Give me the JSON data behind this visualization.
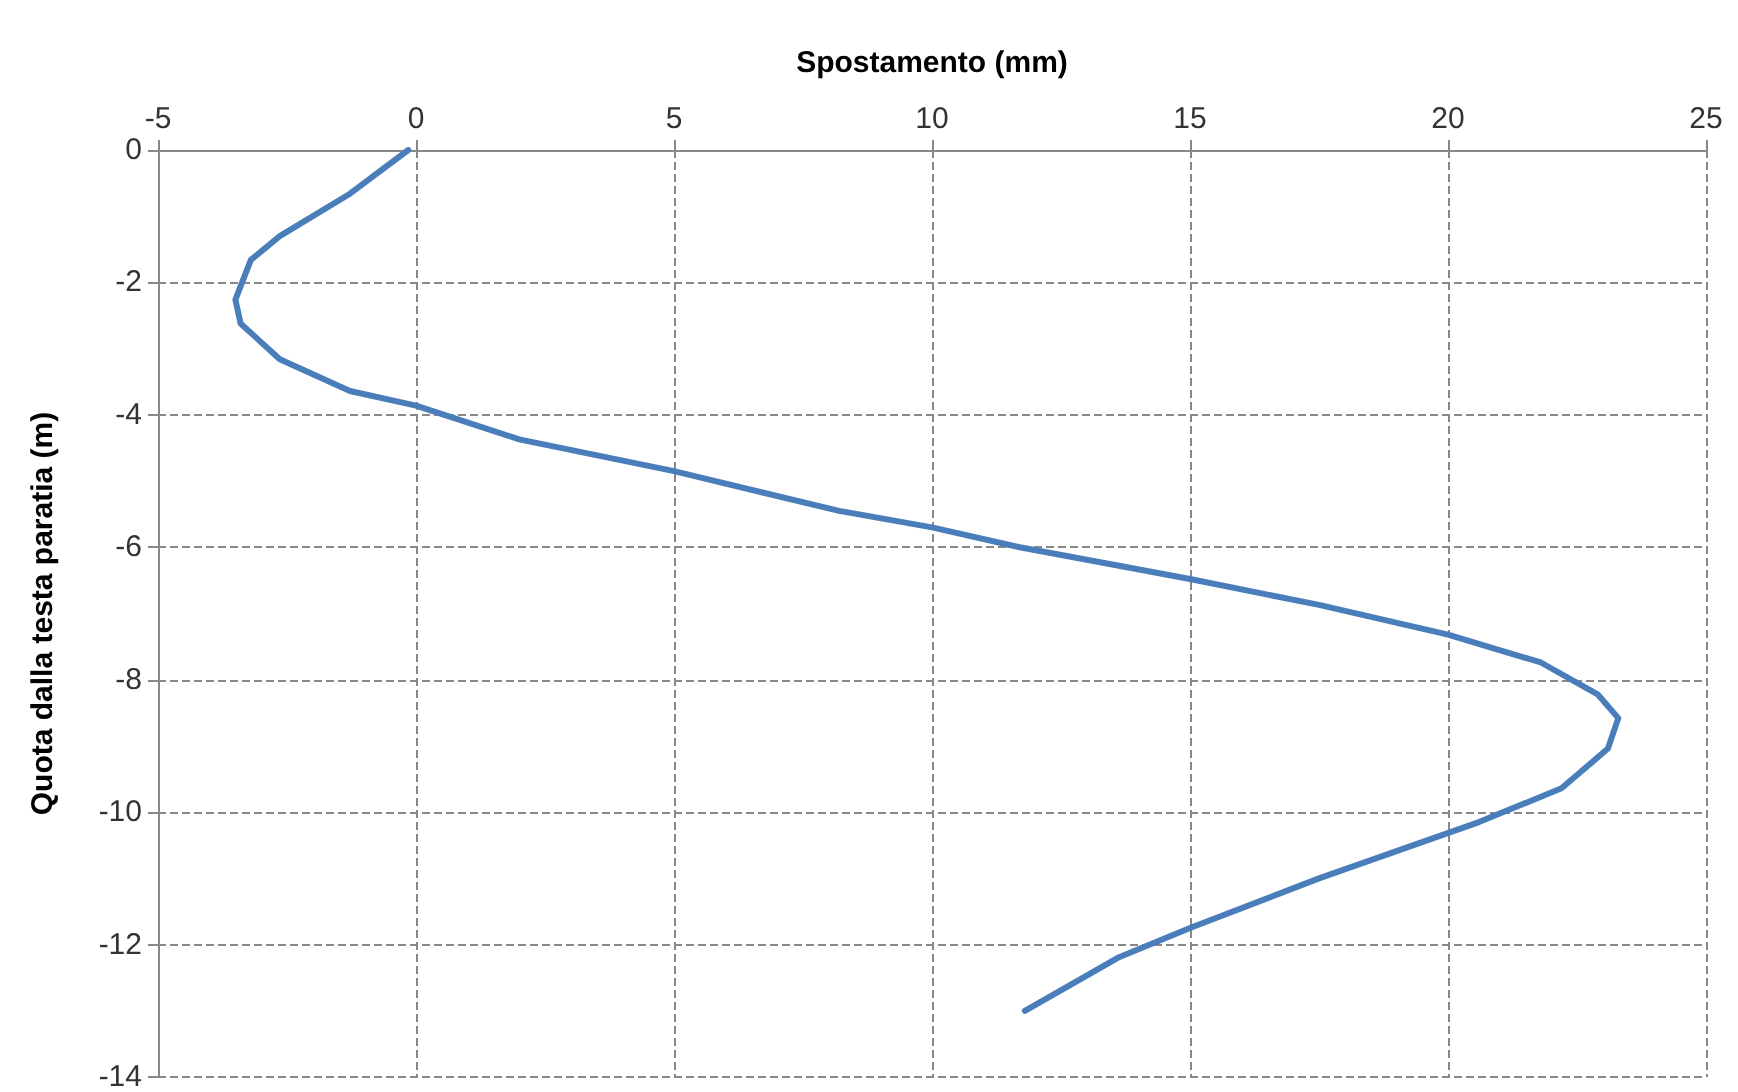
{
  "chart_data": {
    "type": "line",
    "xlabel": "Spostamento (mm)",
    "ylabel": "Quota dalla testa paratia (m)",
    "x": [
      -0.15,
      -1.28,
      -2.64,
      -3.2,
      -3.5,
      -3.4,
      -2.64,
      -1.28,
      0,
      2.0,
      5,
      8.2,
      10,
      11.7,
      15,
      17.5,
      20,
      21.8,
      22.9,
      23.3,
      23.1,
      22.2,
      20.6,
      17.5,
      15,
      13.6,
      11.8
    ],
    "values": [
      0,
      -0.66,
      -1.3,
      -1.66,
      -2.26,
      -2.62,
      -3.16,
      -3.64,
      -3.86,
      -4.37,
      -4.85,
      -5.45,
      -5.7,
      -6.0,
      -6.48,
      -6.87,
      -7.32,
      -7.74,
      -8.22,
      -8.58,
      -9.04,
      -9.64,
      -10.15,
      -11.0,
      -11.75,
      -12.2,
      -13.0
    ],
    "color": "#4a7ebb",
    "marker": "none",
    "xlim": [
      -5,
      25
    ],
    "xticks": [
      -5,
      0,
      5,
      10,
      15,
      20,
      25
    ],
    "ylim": [
      -14,
      0
    ],
    "yticks": [
      -14,
      -12,
      -10,
      -8,
      -6,
      -4,
      -2,
      0
    ],
    "grid": true
  }
}
